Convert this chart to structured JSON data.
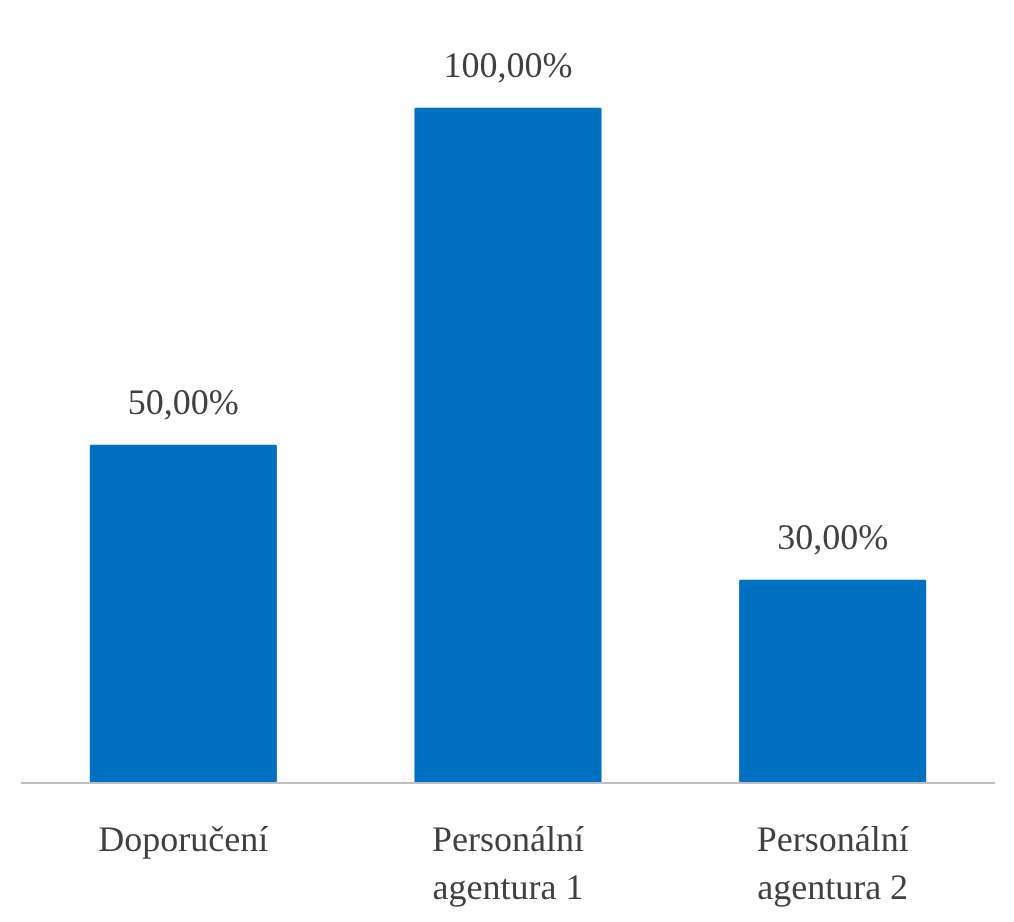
{
  "chart_data": {
    "type": "bar",
    "categories": [
      "Doporučení",
      "Personální agentura 1",
      "Personální agentura 2"
    ],
    "values": [
      50,
      100,
      30
    ],
    "color": "#0070c0",
    "value_labels": [
      "50,00%",
      "100,00%",
      "30,00%"
    ],
    "grid": false
  }
}
